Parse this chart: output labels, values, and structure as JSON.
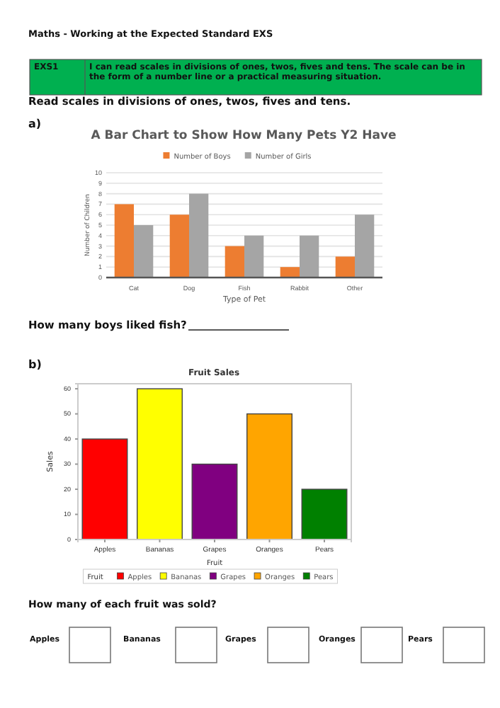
{
  "chart_data": [
    {
      "type": "bar",
      "title": "A Bar Chart to Show How Many Pets Y2 Have",
      "xlabel": "Type of Pet",
      "ylabel": "Number of Children",
      "categories": [
        "Cat",
        "Dog",
        "Fish",
        "Rabbit",
        "Other"
      ],
      "series": [
        {
          "name": "Number of Boys",
          "color": "#ed7d31",
          "values": [
            7,
            6,
            3,
            1,
            2
          ]
        },
        {
          "name": "Number of Girls",
          "color": "#a5a5a5",
          "values": [
            5,
            8,
            4,
            4,
            6
          ]
        }
      ],
      "ylim": [
        0,
        10
      ],
      "yticks": [
        0,
        1,
        2,
        3,
        4,
        5,
        6,
        7,
        8,
        9,
        10
      ],
      "grid": "y",
      "legend": "top",
      "annotations": [
        "Maths - Working at the Expected Standard EXS",
        "EXS1",
        "I can read scales in divisions of ones, twos, fives and tens. The scale can be in the form of a number line or a practical measuring situation.",
        "Read scales in divisions of ones, twos, fives and tens.",
        "a)",
        "How many boys liked fish?"
      ]
    },
    {
      "type": "bar",
      "title": "Fruit Sales",
      "xlabel": "Fruit",
      "ylabel": "Sales",
      "categories": [
        "Apples",
        "Bananas",
        "Grapes",
        "Oranges",
        "Pears"
      ],
      "stacked": true,
      "series": [
        {
          "name": "Apples",
          "color": "#ff0000",
          "values": [
            40,
            null,
            null,
            null,
            null
          ]
        },
        {
          "name": "Bananas",
          "color": "#ffff00",
          "values": [
            null,
            60,
            null,
            null,
            null
          ]
        },
        {
          "name": "Grapes",
          "color": "#800080",
          "values": [
            null,
            null,
            30,
            null,
            null
          ]
        },
        {
          "name": "Oranges",
          "color": "#ffa500",
          "values": [
            null,
            null,
            null,
            50,
            null
          ]
        },
        {
          "name": "Pears",
          "color": "#008000",
          "values": [
            null,
            null,
            null,
            null,
            20
          ]
        }
      ],
      "ylim": [
        0,
        62
      ],
      "yticks": [
        0,
        10,
        20,
        30,
        40,
        50,
        60
      ],
      "grid": false,
      "legend": "bottom",
      "legend_title": "Fruit",
      "annotations": [
        "b)",
        "How many of each fruit was sold?",
        "Apples",
        "Bananas",
        "Grapes",
        "Oranges",
        "Pears"
      ]
    }
  ]
}
